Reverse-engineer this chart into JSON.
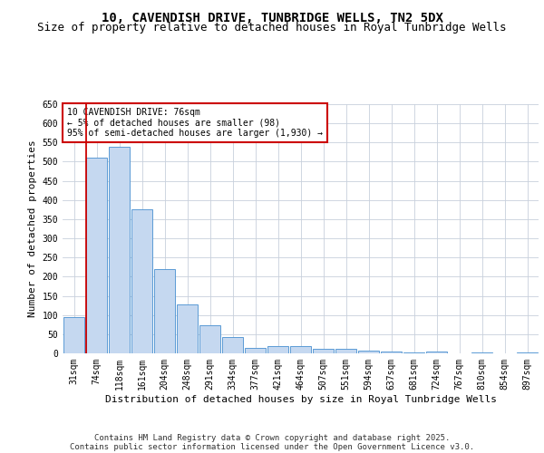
{
  "title": "10, CAVENDISH DRIVE, TUNBRIDGE WELLS, TN2 5DX",
  "subtitle": "Size of property relative to detached houses in Royal Tunbridge Wells",
  "xlabel": "Distribution of detached houses by size in Royal Tunbridge Wells",
  "ylabel": "Number of detached properties",
  "categories": [
    "31sqm",
    "74sqm",
    "118sqm",
    "161sqm",
    "204sqm",
    "248sqm",
    "291sqm",
    "334sqm",
    "377sqm",
    "421sqm",
    "464sqm",
    "507sqm",
    "551sqm",
    "594sqm",
    "637sqm",
    "681sqm",
    "724sqm",
    "767sqm",
    "810sqm",
    "854sqm",
    "897sqm"
  ],
  "values": [
    95,
    510,
    540,
    375,
    220,
    128,
    73,
    43,
    15,
    18,
    19,
    11,
    11,
    7,
    5,
    3,
    5,
    1,
    3,
    1,
    3
  ],
  "bar_color": "#c5d8f0",
  "bar_edge_color": "#5b9bd5",
  "vline_color": "#cc0000",
  "ylim": [
    0,
    650
  ],
  "yticks": [
    0,
    50,
    100,
    150,
    200,
    250,
    300,
    350,
    400,
    450,
    500,
    550,
    600,
    650
  ],
  "annotation_text": "10 CAVENDISH DRIVE: 76sqm\n← 5% of detached houses are smaller (98)\n95% of semi-detached houses are larger (1,930) →",
  "annotation_box_color": "#cc0000",
  "footer_line1": "Contains HM Land Registry data © Crown copyright and database right 2025.",
  "footer_line2": "Contains public sector information licensed under the Open Government Licence v3.0.",
  "background_color": "#ffffff",
  "grid_color": "#c8d0dc",
  "title_fontsize": 10,
  "subtitle_fontsize": 9,
  "axis_label_fontsize": 8,
  "tick_fontsize": 7,
  "footer_fontsize": 6.5
}
